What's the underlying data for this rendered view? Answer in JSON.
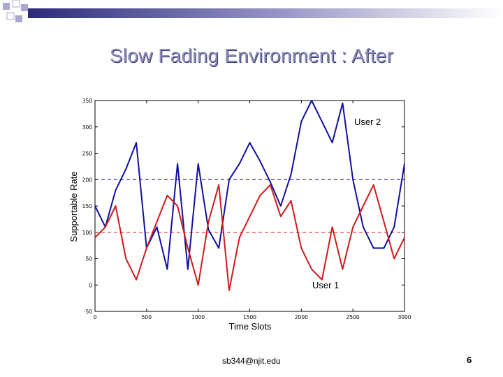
{
  "slide": {
    "title": "Slow Fading Environment : After",
    "footer": "sb344@njit.edu",
    "page_number": "6"
  },
  "colors": {
    "user1": "#d11a1a",
    "user2": "#1010a0",
    "header_bar_start": "#2b2b7a",
    "header_bar_end": "#ffffff",
    "squares": "#a8a8cc"
  },
  "chart_data": {
    "type": "line",
    "title": "",
    "xlabel": "Time Slots",
    "ylabel": "Supportable Rate",
    "xlim": [
      0,
      3000
    ],
    "ylim": [
      -50,
      350
    ],
    "xticks": [
      "0",
      "500",
      "1000",
      "1500",
      "2000",
      "2500",
      "3000"
    ],
    "yticks": [
      "-50",
      "0",
      "50",
      "100",
      "150",
      "200",
      "250",
      "300",
      "350"
    ],
    "xtick_values": [
      0,
      500,
      1000,
      1500,
      2000,
      2500,
      3000
    ],
    "ytick_values": [
      -50,
      0,
      50,
      100,
      150,
      200,
      250,
      300,
      350
    ],
    "grid": false,
    "series": [
      {
        "name": "User 2",
        "x": [
          0,
          100,
          200,
          300,
          400,
          500,
          600,
          700,
          800,
          900,
          1000,
          1100,
          1200,
          1300,
          1400,
          1500,
          1600,
          1700,
          1800,
          1900,
          2000,
          2100,
          2200,
          2300,
          2400,
          2500,
          2600,
          2700,
          2800,
          2900,
          3000
        ],
        "y": [
          150,
          110,
          180,
          220,
          270,
          70,
          110,
          30,
          230,
          30,
          230,
          105,
          70,
          200,
          230,
          270,
          235,
          195,
          150,
          210,
          310,
          350,
          310,
          270,
          345,
          200,
          110,
          70,
          70,
          110,
          230
        ]
      },
      {
        "name": "User 1",
        "x": [
          0,
          100,
          200,
          300,
          400,
          500,
          600,
          700,
          800,
          900,
          1000,
          1100,
          1200,
          1300,
          1400,
          1500,
          1600,
          1700,
          1800,
          1900,
          2000,
          2100,
          2200,
          2300,
          2400,
          2500,
          2600,
          2700,
          2800,
          2900,
          3000
        ],
        "y": [
          90,
          110,
          150,
          50,
          10,
          70,
          120,
          170,
          150,
          70,
          0,
          120,
          190,
          -10,
          90,
          130,
          170,
          190,
          130,
          160,
          70,
          30,
          10,
          110,
          30,
          110,
          150,
          190,
          120,
          50,
          90
        ]
      }
    ],
    "reference_lines": [
      {
        "y": 200,
        "color": "#1010a0",
        "style": "dashed"
      },
      {
        "y": 100,
        "color": "#d11a1a",
        "style": "dashed"
      }
    ],
    "annotations": [
      {
        "text": "User 2",
        "x": 2650,
        "y": 295
      },
      {
        "text": "User 1",
        "x": 2100,
        "y": -5
      }
    ]
  }
}
